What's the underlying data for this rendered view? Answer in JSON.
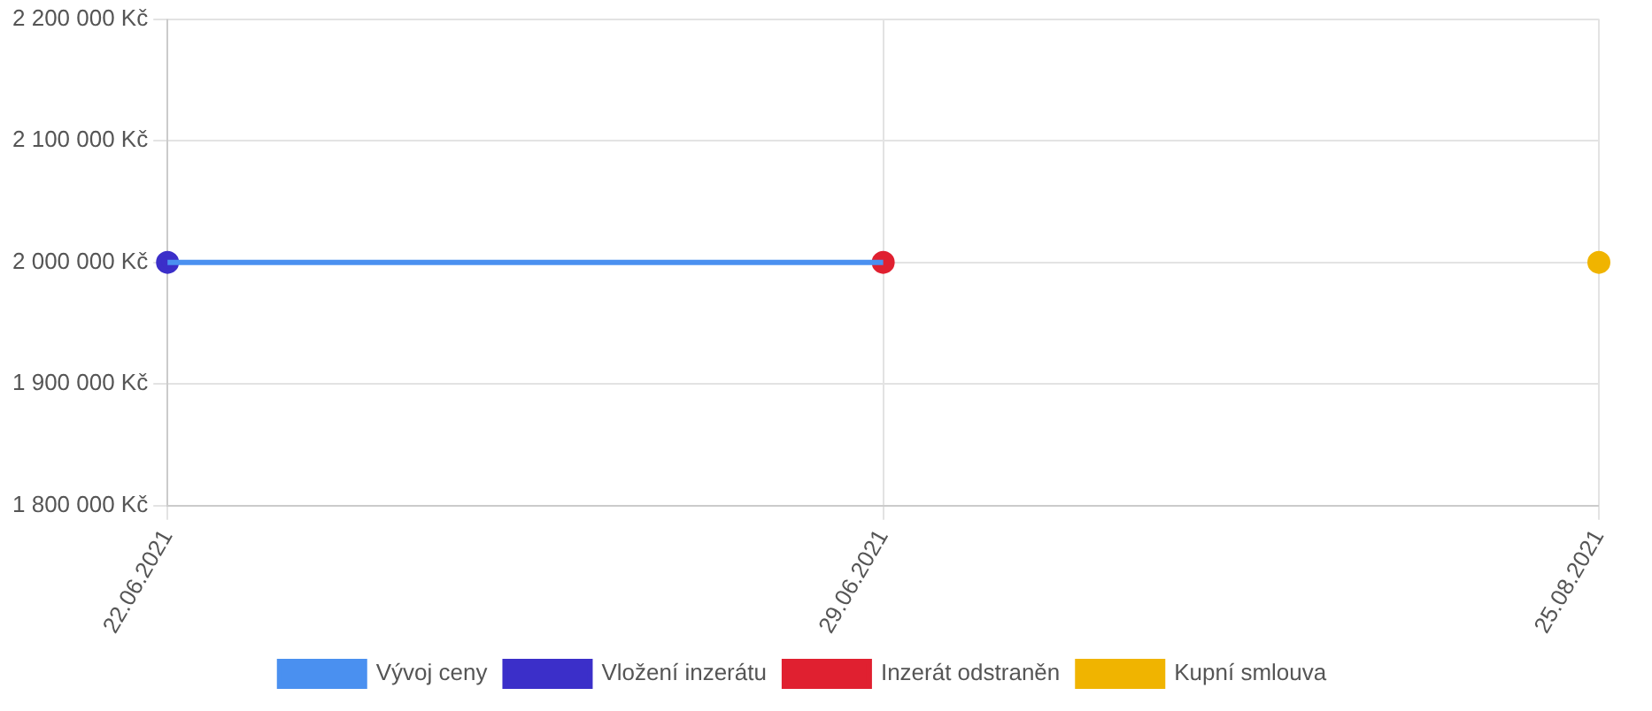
{
  "chart_data": {
    "type": "line",
    "categories": [
      "22.06.2021",
      "29.06.2021",
      "25.08.2021"
    ],
    "series": [
      {
        "name": "Vývoj ceny",
        "marker": "none",
        "color": "#4a90f0",
        "values": [
          2000000,
          2000000,
          null
        ]
      },
      {
        "name": "Vložení inzerátu",
        "type": "scatter",
        "marker": "circle",
        "color": "#3b2fc9",
        "values": [
          2000000,
          null,
          null
        ]
      },
      {
        "name": "Inzerát odstraněn",
        "type": "scatter",
        "marker": "circle",
        "color": "#e02030",
        "values": [
          null,
          2000000,
          null
        ]
      },
      {
        "name": "Kupní smlouva",
        "type": "scatter",
        "marker": "circle",
        "color": "#f0b400",
        "values": [
          null,
          null,
          2000000
        ]
      }
    ],
    "ylim": [
      1800000,
      2200000
    ],
    "yticks": [
      {
        "value": 1800000,
        "label": "1 800 000 Kč"
      },
      {
        "value": 1900000,
        "label": "1 900 000 Kč"
      },
      {
        "value": 2000000,
        "label": "2 000 000 Kč"
      },
      {
        "value": 2100000,
        "label": "2 100 000 Kč"
      },
      {
        "value": 2200000,
        "label": "2 200 000 Kč"
      }
    ],
    "grid": true,
    "legend": "bottom"
  }
}
